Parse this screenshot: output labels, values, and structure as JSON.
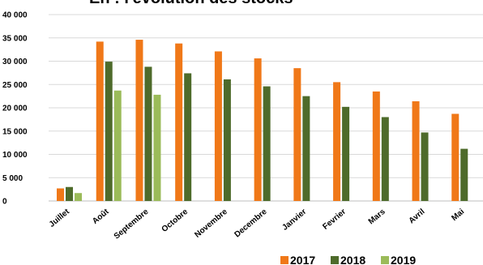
{
  "chart_data": {
    "type": "bar",
    "title": "En : l'évolution des stocks",
    "categories": [
      "Juillet",
      "Août",
      "Septembre",
      "Octobre",
      "Novembre",
      "Decembre",
      "Janvier",
      "Fevrier",
      "Mars",
      "Avril",
      "Mai"
    ],
    "series": [
      {
        "name": "2017",
        "color": "#F07818",
        "values": [
          2700,
          34200,
          34600,
          33800,
          32100,
          30600,
          28500,
          25500,
          23500,
          21400,
          18700
        ]
      },
      {
        "name": "2018",
        "color": "#4E6B2B",
        "values": [
          3000,
          29900,
          28800,
          27400,
          26100,
          24600,
          22500,
          20200,
          18000,
          14700,
          11200
        ]
      },
      {
        "name": "2019",
        "color": "#9BBB59",
        "values": [
          1700,
          23700,
          22800,
          null,
          null,
          null,
          null,
          null,
          null,
          null,
          null
        ]
      }
    ],
    "ylim": [
      0,
      40000
    ],
    "yticks": [
      0,
      5000,
      10000,
      15000,
      20000,
      25000,
      30000,
      35000,
      40000
    ],
    "ytick_labels": [
      "0",
      "5 000",
      "10 000",
      "15 000",
      "20 000",
      "25 000",
      "30 000",
      "35 000",
      "40 000"
    ],
    "xlabel": "",
    "ylabel": "",
    "grid": true,
    "legend_position": "bottom-right"
  }
}
